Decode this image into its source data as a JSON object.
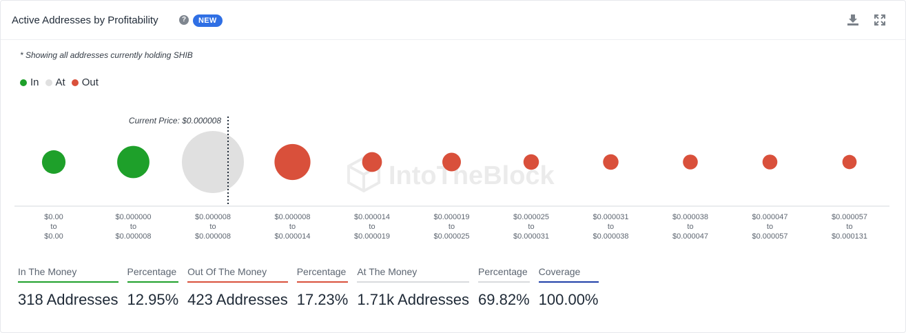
{
  "header": {
    "title": "Active Addresses by Profitability",
    "badge": "NEW",
    "help_icon": "question-circle-icon",
    "download_icon": "download-icon",
    "expand_icon": "expand-icon"
  },
  "note": "* Showing all addresses currently holding SHIB",
  "legend": [
    {
      "label": "In",
      "color": "#1ea02a"
    },
    {
      "label": "At",
      "color": "#e0e0e0"
    },
    {
      "label": "Out",
      "color": "#d9503b"
    }
  ],
  "watermark": "IntoTheBlock",
  "chart_data": {
    "type": "scatter",
    "annotation": "Current Price: $0.000008",
    "current_price_index": 2,
    "bubbles": [
      {
        "from": "$0.00",
        "to": "$0.00",
        "status": "In",
        "relative_size": 0.38
      },
      {
        "from": "$0.000000",
        "to": "$0.000008",
        "status": "In",
        "relative_size": 0.52
      },
      {
        "from": "$0.000008",
        "to": "$0.000008",
        "status": "At",
        "relative_size": 1.0
      },
      {
        "from": "$0.000008",
        "to": "$0.000014",
        "status": "Out",
        "relative_size": 0.58
      },
      {
        "from": "$0.000014",
        "to": "$0.000019",
        "status": "Out",
        "relative_size": 0.32
      },
      {
        "from": "$0.000019",
        "to": "$0.000025",
        "status": "Out",
        "relative_size": 0.3
      },
      {
        "from": "$0.000025",
        "to": "$0.000031",
        "status": "Out",
        "relative_size": 0.25
      },
      {
        "from": "$0.000031",
        "to": "$0.000038",
        "status": "Out",
        "relative_size": 0.25
      },
      {
        "from": "$0.000038",
        "to": "$0.000047",
        "status": "Out",
        "relative_size": 0.24
      },
      {
        "from": "$0.000047",
        "to": "$0.000057",
        "status": "Out",
        "relative_size": 0.24
      },
      {
        "from": "$0.000057",
        "to": "$0.000131",
        "status": "Out",
        "relative_size": 0.23
      }
    ],
    "tick_mid_label": "to"
  },
  "stats": [
    {
      "label": "In The Money",
      "value": "318 Addresses",
      "color": "#1ea02a"
    },
    {
      "label": "Percentage",
      "value": "12.95%",
      "color": "#1ea02a"
    },
    {
      "label": "Out Of The Money",
      "value": "423 Addresses",
      "color": "#d9503b"
    },
    {
      "label": "Percentage",
      "value": "17.23%",
      "color": "#d9503b"
    },
    {
      "label": "At The Money",
      "value": "1.71k Addresses",
      "color": "#d8dadd"
    },
    {
      "label": "Percentage",
      "value": "69.82%",
      "color": "#d8dadd"
    },
    {
      "label": "Coverage",
      "value": "100.00%",
      "color": "#1f3fa8"
    }
  ]
}
